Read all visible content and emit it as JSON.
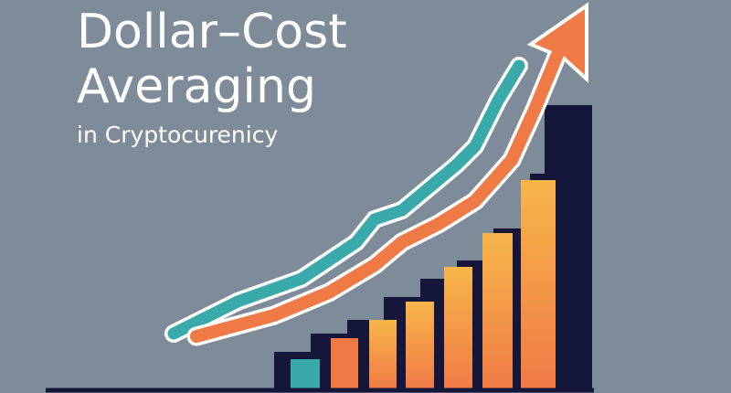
{
  "header": {
    "title_line_1": "Dollar–Cost",
    "title_line_2": "Averaging",
    "subtitle": "in Cryptocurenicy"
  }
}
